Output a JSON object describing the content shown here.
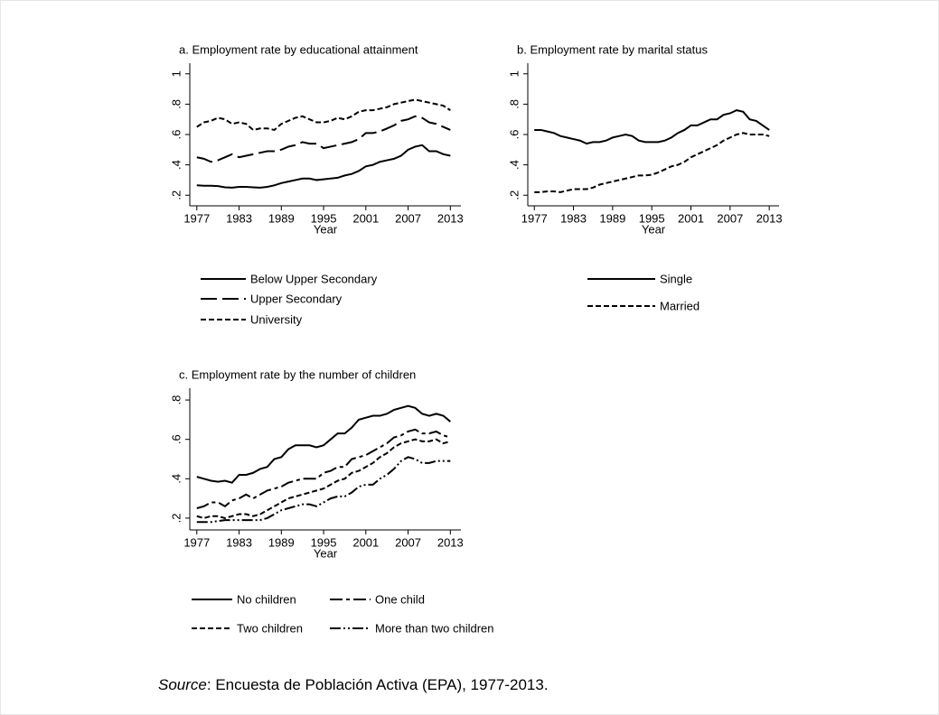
{
  "chart_data": [
    {
      "type": "line",
      "title": "a. Employment rate by educational attainment",
      "x_label": "Year",
      "x": [
        1977,
        1978,
        1979,
        1980,
        1981,
        1982,
        1983,
        1984,
        1985,
        1986,
        1987,
        1988,
        1989,
        1990,
        1991,
        1992,
        1993,
        1994,
        1995,
        1996,
        1997,
        1998,
        1999,
        2000,
        2001,
        2002,
        2003,
        2004,
        2005,
        2006,
        2007,
        2008,
        2009,
        2010,
        2011,
        2012,
        2013
      ],
      "xlim": [
        1976,
        2014.5
      ],
      "xticks": [
        1977,
        1983,
        1989,
        1995,
        2001,
        2007,
        2013
      ],
      "ylim": [
        0.13,
        1.07
      ],
      "yticks": [
        {
          "value": 0.2,
          "label": ".2"
        },
        {
          "value": 0.4,
          "label": ".4"
        },
        {
          "value": 0.6,
          "label": ".6"
        },
        {
          "value": 0.8,
          "label": ".8"
        },
        {
          "value": 1,
          "label": "1"
        }
      ],
      "series": [
        {
          "name": "Below Upper Secondary",
          "color": "#000000",
          "dash": "solid",
          "values": [
            0.265,
            0.262,
            0.262,
            0.26,
            0.252,
            0.25,
            0.255,
            0.255,
            0.252,
            0.25,
            0.255,
            0.265,
            0.28,
            0.29,
            0.3,
            0.31,
            0.31,
            0.3,
            0.305,
            0.31,
            0.315,
            0.33,
            0.34,
            0.36,
            0.39,
            0.4,
            0.42,
            0.43,
            0.44,
            0.46,
            0.5,
            0.52,
            0.53,
            0.49,
            0.49,
            0.47,
            0.46
          ]
        },
        {
          "name": "Upper Secondary",
          "color": "#000000",
          "dash": "long-dash",
          "values": [
            0.45,
            0.44,
            0.42,
            0.43,
            0.45,
            0.47,
            0.45,
            0.46,
            0.47,
            0.48,
            0.49,
            0.49,
            0.5,
            0.52,
            0.53,
            0.55,
            0.54,
            0.54,
            0.51,
            0.52,
            0.53,
            0.54,
            0.55,
            0.57,
            0.61,
            0.61,
            0.62,
            0.64,
            0.66,
            0.69,
            0.7,
            0.72,
            0.71,
            0.68,
            0.67,
            0.65,
            0.63
          ]
        },
        {
          "name": "University",
          "color": "#000000",
          "dash": "short-dash",
          "values": [
            0.65,
            0.68,
            0.69,
            0.71,
            0.7,
            0.67,
            0.68,
            0.67,
            0.63,
            0.64,
            0.64,
            0.63,
            0.67,
            0.69,
            0.71,
            0.72,
            0.7,
            0.68,
            0.68,
            0.69,
            0.71,
            0.7,
            0.72,
            0.75,
            0.76,
            0.76,
            0.77,
            0.78,
            0.8,
            0.81,
            0.82,
            0.83,
            0.82,
            0.81,
            0.8,
            0.79,
            0.76
          ]
        }
      ]
    },
    {
      "type": "line",
      "title": "b. Employment rate by marital status",
      "x_label": "Year",
      "x": [
        1977,
        1978,
        1979,
        1980,
        1981,
        1982,
        1983,
        1984,
        1985,
        1986,
        1987,
        1988,
        1989,
        1990,
        1991,
        1992,
        1993,
        1994,
        1995,
        1996,
        1997,
        1998,
        1999,
        2000,
        2001,
        2002,
        2003,
        2004,
        2005,
        2006,
        2007,
        2008,
        2009,
        2010,
        2011,
        2012,
        2013
      ],
      "xlim": [
        1976,
        2014.5
      ],
      "xticks": [
        1977,
        1983,
        1989,
        1995,
        2001,
        2007,
        2013
      ],
      "ylim": [
        0.13,
        1.07
      ],
      "yticks": [
        {
          "value": 0.2,
          "label": ".2"
        },
        {
          "value": 0.4,
          "label": ".4"
        },
        {
          "value": 0.6,
          "label": ".6"
        },
        {
          "value": 0.8,
          "label": ".8"
        },
        {
          "value": 1,
          "label": "1"
        }
      ],
      "series": [
        {
          "name": "Single",
          "color": "#000000",
          "dash": "solid",
          "values": [
            0.63,
            0.63,
            0.62,
            0.61,
            0.59,
            0.58,
            0.57,
            0.56,
            0.54,
            0.55,
            0.55,
            0.56,
            0.58,
            0.59,
            0.6,
            0.59,
            0.56,
            0.55,
            0.55,
            0.55,
            0.56,
            0.58,
            0.61,
            0.63,
            0.66,
            0.66,
            0.68,
            0.7,
            0.7,
            0.73,
            0.74,
            0.76,
            0.75,
            0.7,
            0.69,
            0.66,
            0.63
          ]
        },
        {
          "name": "Married",
          "color": "#000000",
          "dash": "short-dash",
          "values": [
            0.22,
            0.22,
            0.225,
            0.225,
            0.22,
            0.23,
            0.24,
            0.24,
            0.24,
            0.25,
            0.27,
            0.28,
            0.29,
            0.3,
            0.31,
            0.32,
            0.33,
            0.33,
            0.335,
            0.35,
            0.37,
            0.39,
            0.4,
            0.42,
            0.45,
            0.47,
            0.49,
            0.51,
            0.53,
            0.56,
            0.58,
            0.6,
            0.61,
            0.6,
            0.6,
            0.6,
            0.59
          ]
        }
      ]
    },
    {
      "type": "line",
      "title": "c. Employment rate by the number of children",
      "x_label": "Year",
      "x": [
        1977,
        1978,
        1979,
        1980,
        1981,
        1982,
        1983,
        1984,
        1985,
        1986,
        1987,
        1988,
        1989,
        1990,
        1991,
        1992,
        1993,
        1994,
        1995,
        1996,
        1997,
        1998,
        1999,
        2000,
        2001,
        2002,
        2003,
        2004,
        2005,
        2006,
        2007,
        2008,
        2009,
        2010,
        2011,
        2012,
        2013
      ],
      "xlim": [
        1976,
        2014.5
      ],
      "xticks": [
        1977,
        1983,
        1989,
        1995,
        2001,
        2007,
        2013
      ],
      "ylim": [
        0.14,
        0.86
      ],
      "yticks": [
        {
          "value": 0.2,
          "label": ".2"
        },
        {
          "value": 0.4,
          "label": ".4"
        },
        {
          "value": 0.6,
          "label": ".6"
        },
        {
          "value": 0.8,
          "label": ".8"
        }
      ],
      "series": [
        {
          "name": "No children",
          "color": "#000000",
          "dash": "solid",
          "values": [
            0.41,
            0.4,
            0.39,
            0.385,
            0.39,
            0.38,
            0.42,
            0.42,
            0.43,
            0.45,
            0.46,
            0.5,
            0.51,
            0.55,
            0.57,
            0.57,
            0.57,
            0.56,
            0.57,
            0.6,
            0.63,
            0.63,
            0.66,
            0.7,
            0.71,
            0.72,
            0.72,
            0.73,
            0.75,
            0.76,
            0.77,
            0.76,
            0.73,
            0.72,
            0.73,
            0.72,
            0.69
          ]
        },
        {
          "name": "One child",
          "color": "#000000",
          "dash": "long-dash-dot",
          "values": [
            0.25,
            0.26,
            0.28,
            0.28,
            0.26,
            0.29,
            0.3,
            0.32,
            0.3,
            0.32,
            0.34,
            0.35,
            0.36,
            0.38,
            0.39,
            0.4,
            0.4,
            0.4,
            0.43,
            0.44,
            0.46,
            0.46,
            0.5,
            0.51,
            0.52,
            0.54,
            0.56,
            0.58,
            0.61,
            0.62,
            0.64,
            0.65,
            0.63,
            0.63,
            0.64,
            0.62,
            0.61
          ]
        },
        {
          "name": "Two children",
          "color": "#000000",
          "dash": "short-dash",
          "values": [
            0.21,
            0.2,
            0.21,
            0.21,
            0.2,
            0.21,
            0.22,
            0.22,
            0.21,
            0.22,
            0.24,
            0.26,
            0.28,
            0.3,
            0.31,
            0.32,
            0.33,
            0.34,
            0.35,
            0.37,
            0.39,
            0.4,
            0.43,
            0.44,
            0.46,
            0.48,
            0.51,
            0.53,
            0.56,
            0.58,
            0.59,
            0.6,
            0.59,
            0.59,
            0.6,
            0.58,
            0.59
          ]
        },
        {
          "name": "More than two children",
          "color": "#000000",
          "dash": "dash-dot-dot",
          "values": [
            0.18,
            0.18,
            0.18,
            0.185,
            0.19,
            0.19,
            0.19,
            0.19,
            0.19,
            0.19,
            0.2,
            0.22,
            0.24,
            0.25,
            0.26,
            0.27,
            0.27,
            0.26,
            0.28,
            0.3,
            0.31,
            0.31,
            0.33,
            0.36,
            0.37,
            0.37,
            0.4,
            0.42,
            0.45,
            0.49,
            0.51,
            0.5,
            0.48,
            0.48,
            0.49,
            0.49,
            0.49
          ]
        }
      ]
    }
  ],
  "source": {
    "label": "Source",
    "text": ": Encuesta de Población Activa (EPA), 1977-2013."
  }
}
